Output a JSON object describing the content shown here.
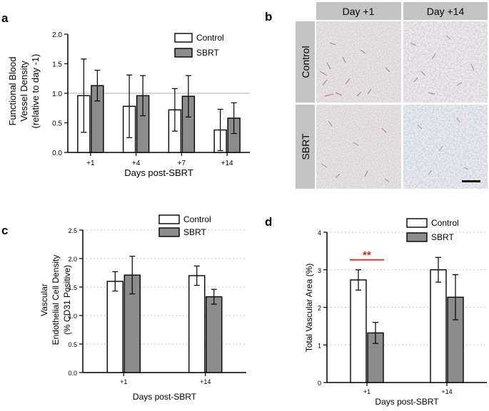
{
  "colors": {
    "control_fill": "#ffffff",
    "sbrt_fill": "#8c8c8c",
    "significance": "#e0201b",
    "micro_header": "#c4c4c4",
    "scale_bar": "#111111"
  },
  "panel_b": {
    "letter": "b",
    "col_headers": [
      "Day +1",
      "Day +14"
    ],
    "row_headers": [
      "Control",
      "SBRT"
    ]
  },
  "chart_data": [
    {
      "panel": "a",
      "type": "bar",
      "title": "",
      "categories": [
        "+1",
        "+4",
        "+7",
        "+14"
      ],
      "series": [
        {
          "name": "Control",
          "values": [
            0.96,
            0.78,
            0.72,
            0.38
          ],
          "errors": [
            0.62,
            0.53,
            0.36,
            0.35
          ]
        },
        {
          "name": "SBRT",
          "values": [
            1.13,
            0.96,
            0.95,
            0.58
          ],
          "errors": [
            0.26,
            0.34,
            0.35,
            0.26
          ]
        }
      ],
      "xlabel": "Days post-SBRT",
      "ylabel": [
        "Functional Blood",
        "Vessel Density",
        "(relative to day -1)"
      ],
      "ylim": [
        0,
        2.0
      ],
      "yticks": [
        "0.0",
        "0.5",
        "1.0",
        "1.5",
        "2.0"
      ],
      "reference_line": 1.0,
      "grid": false,
      "legend": "top-right"
    },
    {
      "panel": "c",
      "type": "bar",
      "title": "",
      "categories": [
        "+1",
        "+14"
      ],
      "series": [
        {
          "name": "Control",
          "values": [
            1.6,
            1.7
          ],
          "errors": [
            0.17,
            0.17
          ]
        },
        {
          "name": "SBRT",
          "values": [
            1.71,
            1.33
          ],
          "errors": [
            0.33,
            0.13
          ]
        }
      ],
      "xlabel": "Days post-SBRT",
      "ylabel": [
        "Vascular",
        "Endothelial Cell Density",
        "(% CD31 Positive)"
      ],
      "ylim": [
        0,
        2.5
      ],
      "yticks": [
        "0.0",
        "0.5",
        "1.0",
        "1.5",
        "2.0",
        "2.5"
      ],
      "grid": true,
      "legend": "top-right"
    },
    {
      "panel": "d",
      "type": "bar",
      "title": "",
      "categories": [
        "+1",
        "+14"
      ],
      "series": [
        {
          "name": "Control",
          "values": [
            2.73,
            3.0
          ],
          "errors": [
            0.27,
            0.33
          ]
        },
        {
          "name": "SBRT",
          "values": [
            1.32,
            2.27
          ],
          "errors": [
            0.28,
            0.6
          ]
        }
      ],
      "xlabel": "Days post-SBRT",
      "ylabel": [
        "Total Vascular Area (%)"
      ],
      "ylim": [
        0,
        4
      ],
      "yticks": [
        "0",
        "1",
        "2",
        "3",
        "4"
      ],
      "grid": true,
      "legend": "top-right",
      "annotation": {
        "text": "**",
        "category": "+1"
      }
    }
  ]
}
